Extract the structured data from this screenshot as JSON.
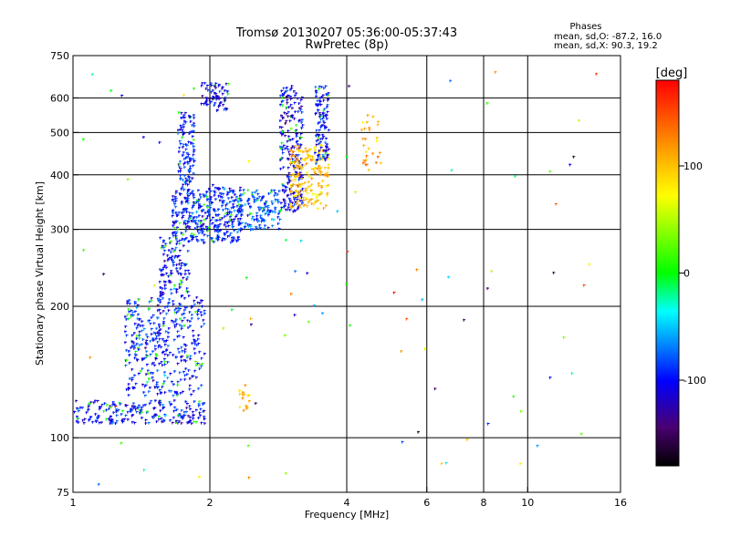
{
  "title": "Tromsø 20130207 05:36:00-05:37:43",
  "subtitle": "RwPretec (8p)",
  "phases": {
    "heading": "Phases",
    "o_line": "mean, sd,O: -87.2, 16.0",
    "x_line": "mean, sd,X:  90.3, 19.2"
  },
  "chart_data": {
    "type": "scatter",
    "title": "Tromsø 20130207 05:36:00-05:37:43",
    "subtitle": "RwPretec (8p)",
    "xlabel": "Frequency [MHz]",
    "ylabel": "Stationary phase Virtual Height [km]",
    "x_scale": "log",
    "y_scale": "log",
    "xlim": [
      1,
      16
    ],
    "ylim": [
      75,
      750
    ],
    "x_ticks": [
      1,
      2,
      4,
      6,
      8,
      10,
      16
    ],
    "x_tick_labels": [
      "1",
      "2",
      "4",
      "6",
      "8",
      "10",
      "16"
    ],
    "x_gridlines": [
      2,
      4,
      6,
      8,
      10
    ],
    "y_ticks": [
      75,
      100,
      200,
      300,
      400,
      500,
      600,
      750
    ],
    "y_tick_labels": [
      "75",
      "100",
      "200",
      "300",
      "400",
      "500",
      "600",
      "750"
    ],
    "y_gridlines": [
      100,
      200,
      300,
      400,
      500,
      600
    ],
    "grid": true,
    "color_by": "phase",
    "colorbar": {
      "label": "[deg]",
      "range": [
        -180,
        180
      ],
      "ticks": [
        100,
        0,
        -100
      ],
      "tick_labels": [
        "100",
        "0",
        "-100"
      ],
      "colors": [
        "#ff0000",
        "#ffff00",
        "#00ff00",
        "#00ffff",
        "#0000ff",
        "#000000"
      ]
    },
    "series": [
      {
        "x_range": [
          1.0,
          1.95
        ],
        "y_range": [
          108,
          122
        ],
        "phase_mean": -100,
        "points": 220
      },
      {
        "x_range": [
          1.3,
          1.95
        ],
        "y_range": [
          125,
          210
        ],
        "phase_mean": -95,
        "points": 380
      },
      {
        "x_range": [
          1.55,
          1.8
        ],
        "y_range": [
          210,
          290
        ],
        "phase_mean": -100,
        "points": 120
      },
      {
        "x_range": [
          1.65,
          2.35
        ],
        "y_range": [
          280,
          375
        ],
        "phase_mean": -95,
        "points": 380
      },
      {
        "x_range": [
          1.7,
          1.85
        ],
        "y_range": [
          380,
          560
        ],
        "phase_mean": -95,
        "points": 110
      },
      {
        "x_range": [
          1.9,
          2.2
        ],
        "y_range": [
          560,
          650
        ],
        "phase_mean": -110,
        "points": 70
      },
      {
        "x_range": [
          2.3,
          2.85
        ],
        "y_range": [
          300,
          370
        ],
        "phase_mean": -80,
        "points": 140
      },
      {
        "x_range": [
          2.85,
          3.2
        ],
        "y_range": [
          330,
          640
        ],
        "phase_mean": -110,
        "points": 220
      },
      {
        "x_range": [
          3.0,
          3.65
        ],
        "y_range": [
          335,
          470
        ],
        "phase_mean": 100,
        "points": 190
      },
      {
        "x_range": [
          3.4,
          3.65
        ],
        "y_range": [
          420,
          640
        ],
        "phase_mean": -100,
        "points": 110
      },
      {
        "x_range": [
          4.3,
          4.75
        ],
        "y_range": [
          410,
          550
        ],
        "phase_mean": 105,
        "points": 30
      },
      {
        "x_range": [
          2.3,
          2.45
        ],
        "y_range": [
          115,
          135
        ],
        "phase_mean": 105,
        "points": 18
      },
      {
        "x_range": [
          1.0,
          14.5
        ],
        "y_range": [
          78,
          700
        ],
        "phase_mean": 0,
        "points": 90
      }
    ]
  }
}
